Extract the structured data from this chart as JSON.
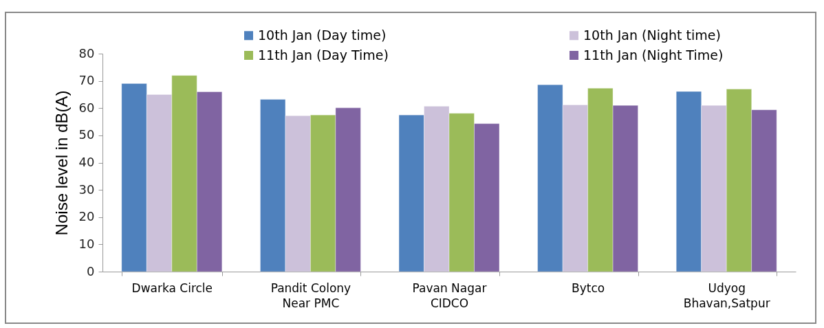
{
  "chart_data": {
    "type": "bar",
    "ylabel": "Noise level in dB(A)",
    "categories": [
      "Dwarka Circle",
      "Pandit Colony\nNear PMC",
      "Pavan Nagar\nCIDCO",
      "Bytco",
      "Udyog\nBhavan,Satpur"
    ],
    "series": [
      {
        "name": "10th Jan (Day time)",
        "color": "#4f81bd",
        "values": [
          69,
          63.2,
          57.5,
          68.6,
          66.1
        ]
      },
      {
        "name": "10th Jan (Night time)",
        "color": "#ccc1da",
        "values": [
          65,
          57.2,
          60.7,
          61.2,
          61.0
        ]
      },
      {
        "name": "11th Jan (Day Time)",
        "color": "#9bbb59",
        "values": [
          72,
          57.5,
          58.1,
          67.3,
          67.0
        ]
      },
      {
        "name": "11th Jan (Night Time)",
        "color": "#8064a2",
        "values": [
          66,
          60.1,
          54.3,
          61.0,
          59.4
        ]
      }
    ],
    "ylim": [
      0,
      80
    ],
    "yticks": [
      0,
      10,
      20,
      30,
      40,
      50,
      60,
      70,
      80
    ],
    "grid": false,
    "legend": "top"
  }
}
